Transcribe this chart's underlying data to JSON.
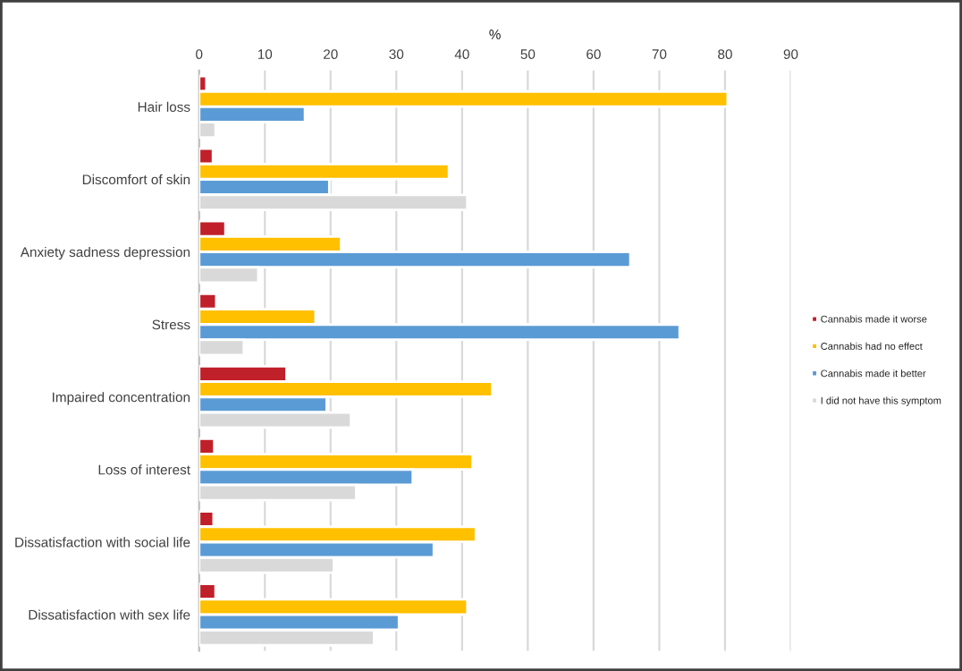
{
  "chart_data": {
    "type": "bar",
    "orientation": "horizontal",
    "xlabel": "%",
    "categories": [
      "Hair loss",
      "Discomfort of skin",
      "Anxiety sadness depression",
      "Stress",
      "Impaired concentration",
      "Loss of interest",
      "Dissatisfaction with social life",
      "Dissatisfaction with sex life"
    ],
    "series": [
      {
        "name": "Cannabis made it worse",
        "color": "#c0202a",
        "values": [
          1.1,
          2.1,
          4.0,
          2.6,
          13.3,
          2.3,
          2.2,
          2.5
        ]
      },
      {
        "name": "Cannabis had no effect",
        "color": "#ffc000",
        "values": [
          80.4,
          38.0,
          21.6,
          17.7,
          44.6,
          41.6,
          42.1,
          40.8
        ]
      },
      {
        "name": "Cannabis made it better",
        "color": "#5b9bd5",
        "values": [
          16.1,
          19.8,
          65.6,
          73.1,
          19.4,
          32.5,
          35.7,
          30.4
        ]
      },
      {
        "name": "I did not have this symptom",
        "color": "#d9d9d9",
        "values": [
          2.5,
          40.8,
          9.0,
          6.8,
          23.1,
          23.9,
          20.5,
          26.6
        ]
      }
    ],
    "xlim": [
      0,
      90
    ],
    "xticks": [
      0,
      10,
      20,
      30,
      40,
      50,
      60,
      70,
      80,
      90
    ],
    "grid": "x",
    "legend": "right"
  }
}
